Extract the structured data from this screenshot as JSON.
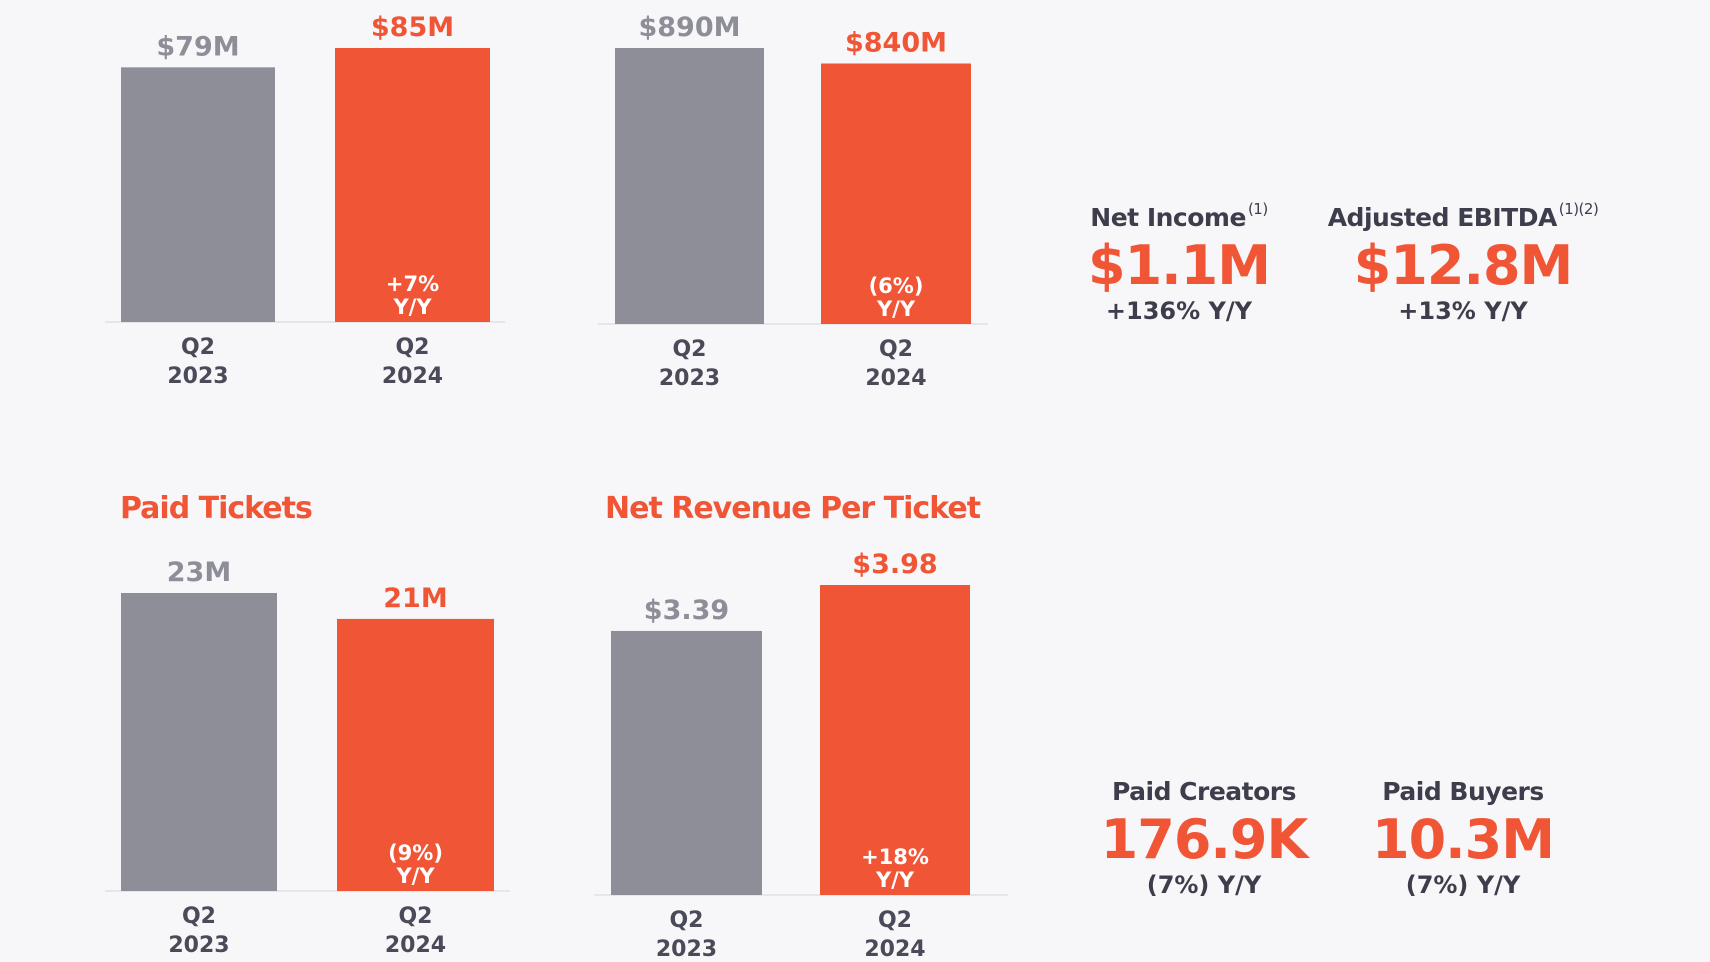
{
  "colors": {
    "prior": "#8e8e98",
    "current": "#f05536",
    "text": "#4a4a58",
    "axis": "#e6e6ea"
  },
  "chart_data": [
    {
      "type": "bar",
      "title": "",
      "categories": [
        "Q2\n2023",
        "Q2\n2024"
      ],
      "values": [
        79,
        85
      ],
      "value_labels": [
        "$79M",
        "$85M"
      ],
      "change_label": [
        "+7%",
        "Y/Y"
      ],
      "ylim": [
        0,
        85
      ]
    },
    {
      "type": "bar",
      "title": "",
      "categories": [
        "Q2\n2023",
        "Q2\n2024"
      ],
      "values": [
        890,
        840
      ],
      "value_labels": [
        "$890M",
        "$840M"
      ],
      "change_label": [
        "(6%)",
        "Y/Y"
      ],
      "ylim": [
        0,
        890
      ]
    },
    {
      "type": "bar",
      "title": "Paid Tickets",
      "categories": [
        "Q2\n2023",
        "Q2\n2024"
      ],
      "values": [
        23,
        21
      ],
      "value_labels": [
        "23M",
        "21M"
      ],
      "change_label": [
        "(9%)",
        "Y/Y"
      ],
      "ylim": [
        0,
        23
      ]
    },
    {
      "type": "bar",
      "title": "Net Revenue Per Ticket",
      "categories": [
        "Q2\n2023",
        "Q2\n2024"
      ],
      "values": [
        3.39,
        3.98
      ],
      "value_labels": [
        "$3.39",
        "$3.98"
      ],
      "change_label": [
        "+18%",
        "Y/Y"
      ],
      "ylim": [
        0,
        3.98
      ]
    }
  ],
  "kpis": [
    {
      "label": "Net Income",
      "note": "(1)",
      "value": "$1.1M",
      "change": "+136% Y/Y"
    },
    {
      "label": "Adjusted EBITDA",
      "note": "(1)(2)",
      "value": "$12.8M",
      "change": "+13% Y/Y"
    },
    {
      "label": "Paid Creators",
      "note": "",
      "value": "176.9K",
      "change": "(7%) Y/Y"
    },
    {
      "label": "Paid Buyers",
      "note": "",
      "value": "10.3M",
      "change": "(7%) Y/Y"
    }
  ]
}
